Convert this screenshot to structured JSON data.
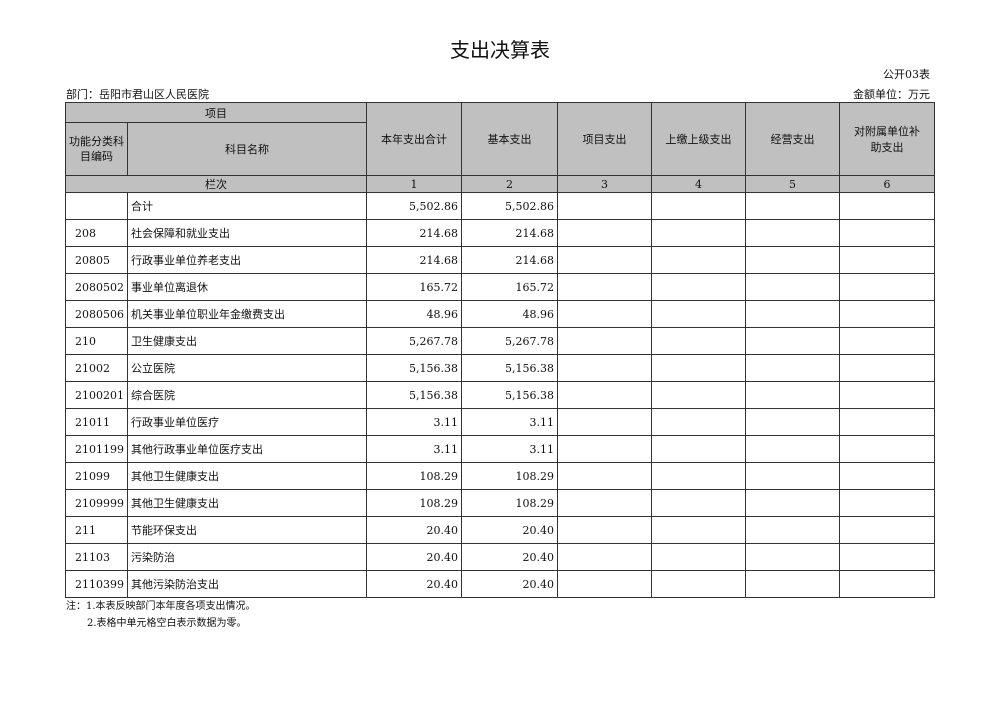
{
  "title": "支出决算表",
  "form_code": "公开03表",
  "department": "部门：岳阳市君山区人民医院",
  "unit": "金额单位：万元",
  "header": {
    "item": "项目",
    "code": "功能分类科目编码",
    "name": "科目名称",
    "cols": [
      "本年支出合计",
      "基本支出",
      "项目支出",
      "上缴上级支出",
      "经营支出",
      "对附属单位补助支出"
    ],
    "seq_label": "栏次",
    "seq": [
      "1",
      "2",
      "3",
      "4",
      "5",
      "6"
    ]
  },
  "rows": [
    {
      "code": "",
      "name": "合计",
      "total": "5,502.86",
      "basic": "5,502.86"
    },
    {
      "code": "208",
      "name": "社会保障和就业支出",
      "total": "214.68",
      "basic": "214.68"
    },
    {
      "code": "20805",
      "name": "行政事业单位养老支出",
      "total": "214.68",
      "basic": "214.68"
    },
    {
      "code": "2080502",
      "name": "事业单位离退休",
      "total": "165.72",
      "basic": "165.72"
    },
    {
      "code": "2080506",
      "name": "机关事业单位职业年金缴费支出",
      "total": "48.96",
      "basic": "48.96"
    },
    {
      "code": "210",
      "name": "卫生健康支出",
      "total": "5,267.78",
      "basic": "5,267.78"
    },
    {
      "code": "21002",
      "name": "公立医院",
      "total": "5,156.38",
      "basic": "5,156.38"
    },
    {
      "code": "2100201",
      "name": "综合医院",
      "total": "5,156.38",
      "basic": "5,156.38"
    },
    {
      "code": "21011",
      "name": "行政事业单位医疗",
      "total": "3.11",
      "basic": "3.11"
    },
    {
      "code": "2101199",
      "name": "其他行政事业单位医疗支出",
      "total": "3.11",
      "basic": "3.11"
    },
    {
      "code": "21099",
      "name": "其他卫生健康支出",
      "total": "108.29",
      "basic": "108.29"
    },
    {
      "code": "2109999",
      "name": "其他卫生健康支出",
      "total": "108.29",
      "basic": "108.29"
    },
    {
      "code": "211",
      "name": "节能环保支出",
      "total": "20.40",
      "basic": "20.40"
    },
    {
      "code": "21103",
      "name": "污染防治",
      "total": "20.40",
      "basic": "20.40"
    },
    {
      "code": "2110399",
      "name": "其他污染防治支出",
      "total": "20.40",
      "basic": "20.40"
    }
  ],
  "notes": [
    "注：1.本表反映部门本年度各项支出情况。",
    "2.表格中单元格空白表示数据为零。"
  ]
}
